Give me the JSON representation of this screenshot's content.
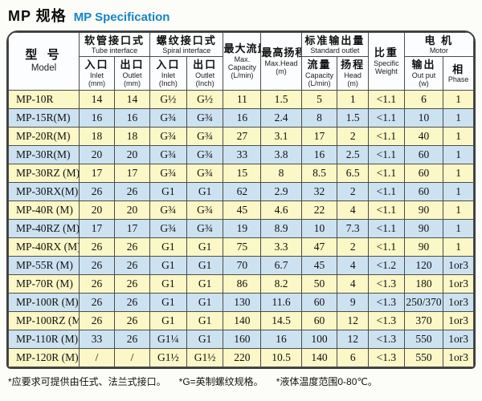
{
  "page": {
    "title_zh": "MP 规格",
    "title_en": "MP Specification"
  },
  "colors": {
    "title_accent": "#1485c7",
    "row_yellow": "#fbf7c6",
    "row_blue": "#cde2f1"
  },
  "table": {
    "header": {
      "model_zh": "型 号",
      "model_en": "Model",
      "tube_zh": "软管接口式",
      "tube_en": "Tube interface",
      "spiral_zh": "螺纹接口式",
      "spiral_en": "Spiral interface",
      "inlet_zh": "入口",
      "inlet_en": "Inlet",
      "outlet_zh": "出口",
      "outlet_en": "Outlet",
      "unit_mm": "(mm)",
      "unit_inch": "(Inch)",
      "max_capacity_zh": "最大流量",
      "max_capacity_en1": "Max.",
      "max_capacity_en2": "Capacity",
      "unit_lmin": "(L/min)",
      "max_head_zh": "最高扬程",
      "max_head_en": "Max.Head",
      "unit_m": "(m)",
      "std_outlet_zh": "标准输出量",
      "std_outlet_en": "Standard outlet",
      "std_capacity_zh": "流量",
      "std_capacity_en": "Capacity",
      "std_head_zh": "扬程",
      "std_head_en": "Head",
      "weight_zh": "比重",
      "weight_en1": "Specific",
      "weight_en2": "Weight",
      "motor_zh": "电 机",
      "motor_en": "Motor",
      "output_zh": "输出",
      "output_en": "Out put",
      "unit_w": "(w)",
      "phase_zh": "相",
      "phase_en": "Phase"
    },
    "rows": [
      {
        "model": "MP-10R",
        "cells": [
          "14",
          "14",
          "G½",
          "G½",
          "11",
          "1.5",
          "5",
          "1",
          "<1.1",
          "6",
          "1"
        ]
      },
      {
        "model": "MP-15R(M)",
        "cells": [
          "16",
          "16",
          "G¾",
          "G¾",
          "16",
          "2.4",
          "8",
          "1.5",
          "<1.1",
          "10",
          "1"
        ]
      },
      {
        "model": "MP-20R(M)",
        "cells": [
          "18",
          "18",
          "G¾",
          "G¾",
          "27",
          "3.1",
          "17",
          "2",
          "<1.1",
          "40",
          "1"
        ]
      },
      {
        "model": "MP-30R(M)",
        "cells": [
          "20",
          "20",
          "G¾",
          "G¾",
          "33",
          "3.8",
          "16",
          "2.5",
          "<1.1",
          "60",
          "1"
        ]
      },
      {
        "model": "MP-30RZ (M)",
        "cells": [
          "17",
          "17",
          "G¾",
          "G¾",
          "15",
          "8",
          "8.5",
          "6.5",
          "<1.1",
          "60",
          "1"
        ]
      },
      {
        "model": "MP-30RX(M)",
        "cells": [
          "26",
          "26",
          "G1",
          "G1",
          "62",
          "2.9",
          "32",
          "2",
          "<1.1",
          "60",
          "1"
        ]
      },
      {
        "model": "MP-40R (M)",
        "cells": [
          "20",
          "20",
          "G¾",
          "G¾",
          "45",
          "4.6",
          "22",
          "4",
          "<1.1",
          "90",
          "1"
        ]
      },
      {
        "model": "MP-40RZ (M)",
        "cells": [
          "17",
          "17",
          "G¾",
          "G¾",
          "19",
          "8.9",
          "10",
          "7.3",
          "<1.1",
          "90",
          "1"
        ]
      },
      {
        "model": "MP-40RX (M)",
        "cells": [
          "26",
          "26",
          "G1",
          "G1",
          "75",
          "3.3",
          "47",
          "2",
          "<1.1",
          "90",
          "1"
        ]
      },
      {
        "model": "MP-55R (M)",
        "cells": [
          "26",
          "26",
          "G1",
          "G1",
          "70",
          "6.7",
          "45",
          "4",
          "<1.2",
          "120",
          "1or3"
        ]
      },
      {
        "model": "MP-70R (M)",
        "cells": [
          "26",
          "26",
          "G1",
          "G1",
          "86",
          "8.2",
          "50",
          "4",
          "<1.3",
          "180",
          "1or3"
        ]
      },
      {
        "model": "MP-100R (M)",
        "cells": [
          "26",
          "26",
          "G1",
          "G1",
          "130",
          "11.6",
          "60",
          "9",
          "<1.3",
          "250/370",
          "1or3"
        ]
      },
      {
        "model": "MP-100RZ (M)",
        "cells": [
          "26",
          "26",
          "G1",
          "G1",
          "140",
          "14.5",
          "60",
          "12",
          "<1.3",
          "370",
          "1or3"
        ]
      },
      {
        "model": "MP-110R (M)",
        "cells": [
          "33",
          "26",
          "G1¼",
          "G1",
          "160",
          "16",
          "100",
          "12",
          "<1.3",
          "550",
          "1or3"
        ]
      },
      {
        "model": "MP-120R (M)",
        "cells": [
          "/",
          "/",
          "G1½",
          "G1½",
          "220",
          "10.5",
          "140",
          "6",
          "<1.3",
          "550",
          "1or3"
        ]
      }
    ]
  },
  "footnotes": [
    "*应要求可提供由任式、法兰式接口。",
    "*G=英制螺纹规格。",
    "*液体温度范围0-80℃。"
  ]
}
